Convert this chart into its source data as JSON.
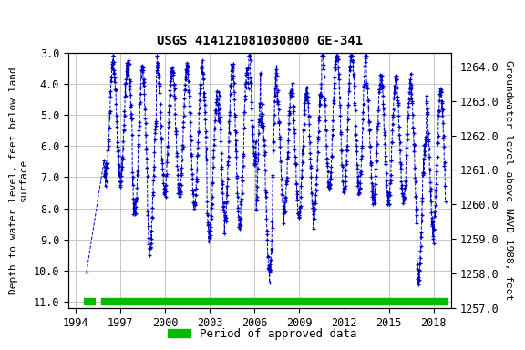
{
  "title": "USGS 414121081030800 GE-341",
  "ylabel_left": "Depth to water level, feet below land\nsurface",
  "ylabel_right": "Groundwater level above NAVD 1988, feet",
  "ylim_left": [
    11.2,
    3.0
  ],
  "ylim_right": [
    1257.0,
    1264.4
  ],
  "xlim": [
    1993.5,
    2019.2
  ],
  "yticks_left": [
    3.0,
    4.0,
    5.0,
    6.0,
    7.0,
    8.0,
    9.0,
    10.0,
    11.0
  ],
  "yticks_right": [
    1257.0,
    1258.0,
    1259.0,
    1260.0,
    1261.0,
    1262.0,
    1263.0,
    1264.0
  ],
  "xticks": [
    1994,
    1997,
    2000,
    2003,
    2006,
    2009,
    2012,
    2015,
    2018
  ],
  "line_color": "#0000cc",
  "approved_bar_color": "#00bb00",
  "background_color": "#ffffff",
  "grid_color": "#b0b0b0",
  "title_fontsize": 10,
  "axis_label_fontsize": 8,
  "tick_fontsize": 8.5,
  "legend_fontsize": 9,
  "approved_xstart": 1995.7,
  "approved_xend": 2018.95,
  "approved_x2start": 1994.55,
  "approved_x2end": 1995.3
}
